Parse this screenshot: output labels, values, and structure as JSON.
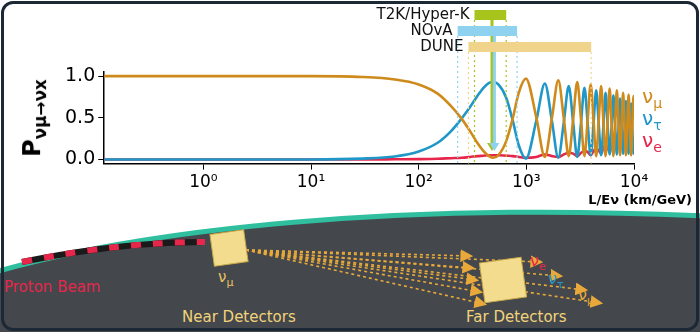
{
  "chart_data": {
    "type": "line",
    "x_label": "L/Eν (km/GeV)",
    "y_label": "Pνμ→νx",
    "x": [
      0.12,
      0.3,
      1,
      3,
      10,
      30,
      60,
      100,
      150,
      200,
      250,
      300,
      350,
      400,
      450,
      495,
      550,
      650,
      750,
      850,
      990,
      1240,
      1485,
      1730,
      1980,
      2230,
      2475,
      2720,
      2970,
      3220,
      3465,
      3710,
      3960,
      4210,
      4455,
      4700,
      4950,
      5200,
      5445,
      5690,
      5940,
      6190,
      6435,
      6680,
      6930,
      7180,
      7425,
      7670,
      7920,
      8170,
      8415,
      8660,
      8910,
      9160,
      9405,
      9650,
      9900,
      10000
    ],
    "series": [
      {
        "name": "νμ",
        "color": "#cf8a1c",
        "values": [
          1.0,
          1.0,
          1.0,
          1.0,
          1.0,
          0.99,
          0.96,
          0.9,
          0.79,
          0.64,
          0.49,
          0.34,
          0.2,
          0.1,
          0.04,
          0.02,
          0.05,
          0.22,
          0.5,
          0.8,
          0.97,
          0.5,
          0.03,
          0.5,
          0.95,
          0.49,
          0.04,
          0.48,
          0.93,
          0.48,
          0.04,
          0.47,
          0.9,
          0.47,
          0.04,
          0.46,
          0.88,
          0.45,
          0.04,
          0.45,
          0.85,
          0.44,
          0.04,
          0.43,
          0.83,
          0.42,
          0.05,
          0.42,
          0.8,
          0.41,
          0.05,
          0.4,
          0.78,
          0.39,
          0.05,
          0.39,
          0.76,
          0.74
        ]
      },
      {
        "name": "ντ",
        "color": "#1f98c8",
        "values": [
          0,
          0,
          0,
          0,
          0,
          0.01,
          0.035,
          0.095,
          0.2,
          0.34,
          0.49,
          0.63,
          0.76,
          0.86,
          0.92,
          0.93,
          0.9,
          0.74,
          0.46,
          0.17,
          0.01,
          0.47,
          0.91,
          0.46,
          0.02,
          0.45,
          0.88,
          0.45,
          0.03,
          0.44,
          0.86,
          0.44,
          0.05,
          0.43,
          0.83,
          0.43,
          0.05,
          0.41,
          0.8,
          0.41,
          0.06,
          0.39,
          0.77,
          0.4,
          0.06,
          0.38,
          0.73,
          0.38,
          0.07,
          0.36,
          0.7,
          0.37,
          0.07,
          0.34,
          0.67,
          0.35,
          0.07,
          0.09
        ]
      },
      {
        "name": "νe",
        "color": "#e6264b",
        "values": [
          0,
          0,
          0,
          0,
          0,
          0,
          0.002,
          0.004,
          0.008,
          0.015,
          0.02,
          0.03,
          0.04,
          0.045,
          0.05,
          0.05,
          0.05,
          0.045,
          0.04,
          0.03,
          0.02,
          0.03,
          0.06,
          0.04,
          0.03,
          0.06,
          0.08,
          0.07,
          0.04,
          0.08,
          0.1,
          0.09,
          0.05,
          0.1,
          0.13,
          0.11,
          0.07,
          0.14,
          0.16,
          0.14,
          0.09,
          0.17,
          0.19,
          0.17,
          0.11,
          0.2,
          0.22,
          0.2,
          0.13,
          0.23,
          0.25,
          0.23,
          0.15,
          0.27,
          0.28,
          0.26,
          0.17,
          0.17
        ]
      }
    ],
    "xlim": [
      0.12,
      10000
    ],
    "xticks": [
      {
        "value": 1,
        "label": "10⁰"
      },
      {
        "value": 10,
        "label": "10¹"
      },
      {
        "value": 100,
        "label": "10²"
      },
      {
        "value": 1000,
        "label": "10³"
      },
      {
        "value": 10000,
        "label": "10⁴"
      }
    ],
    "ylim": [
      -0.05,
      1.05
    ],
    "yticks": [
      {
        "value": 0,
        "label": "0.0"
      },
      0.5,
      {
        "value": 1,
        "label": "1.0"
      }
    ],
    "log": "x",
    "grid": false,
    "legend": "right",
    "annotations": [
      {
        "name": "T2K/Hyper-K",
        "color": "#a6c41c",
        "range": [
          330,
          650
        ],
        "arrow_x": 480,
        "arrow_to": 0.1
      },
      {
        "name": "NOvA",
        "color": "#8fd2ef",
        "range": [
          230,
          820
        ],
        "arrow_x": 505,
        "arrow_to": 0.1
      },
      {
        "name": "DUNE",
        "color": "#f0d48c",
        "range": [
          290,
          4000
        ]
      }
    ]
  },
  "diagram": {
    "proton_beam": "Proton Beam",
    "near_detectors": "Near Detectors",
    "far_detectors": "Far Detectors",
    "beam_label": {
      "text": "νμ",
      "color": "#e9c262"
    },
    "far_labels": [
      {
        "text": "νe",
        "color": "#e6264b"
      },
      {
        "text": "ντ",
        "color": "#1f98c8"
      },
      {
        "text": "νμ",
        "color": "#e9a93a"
      }
    ]
  }
}
